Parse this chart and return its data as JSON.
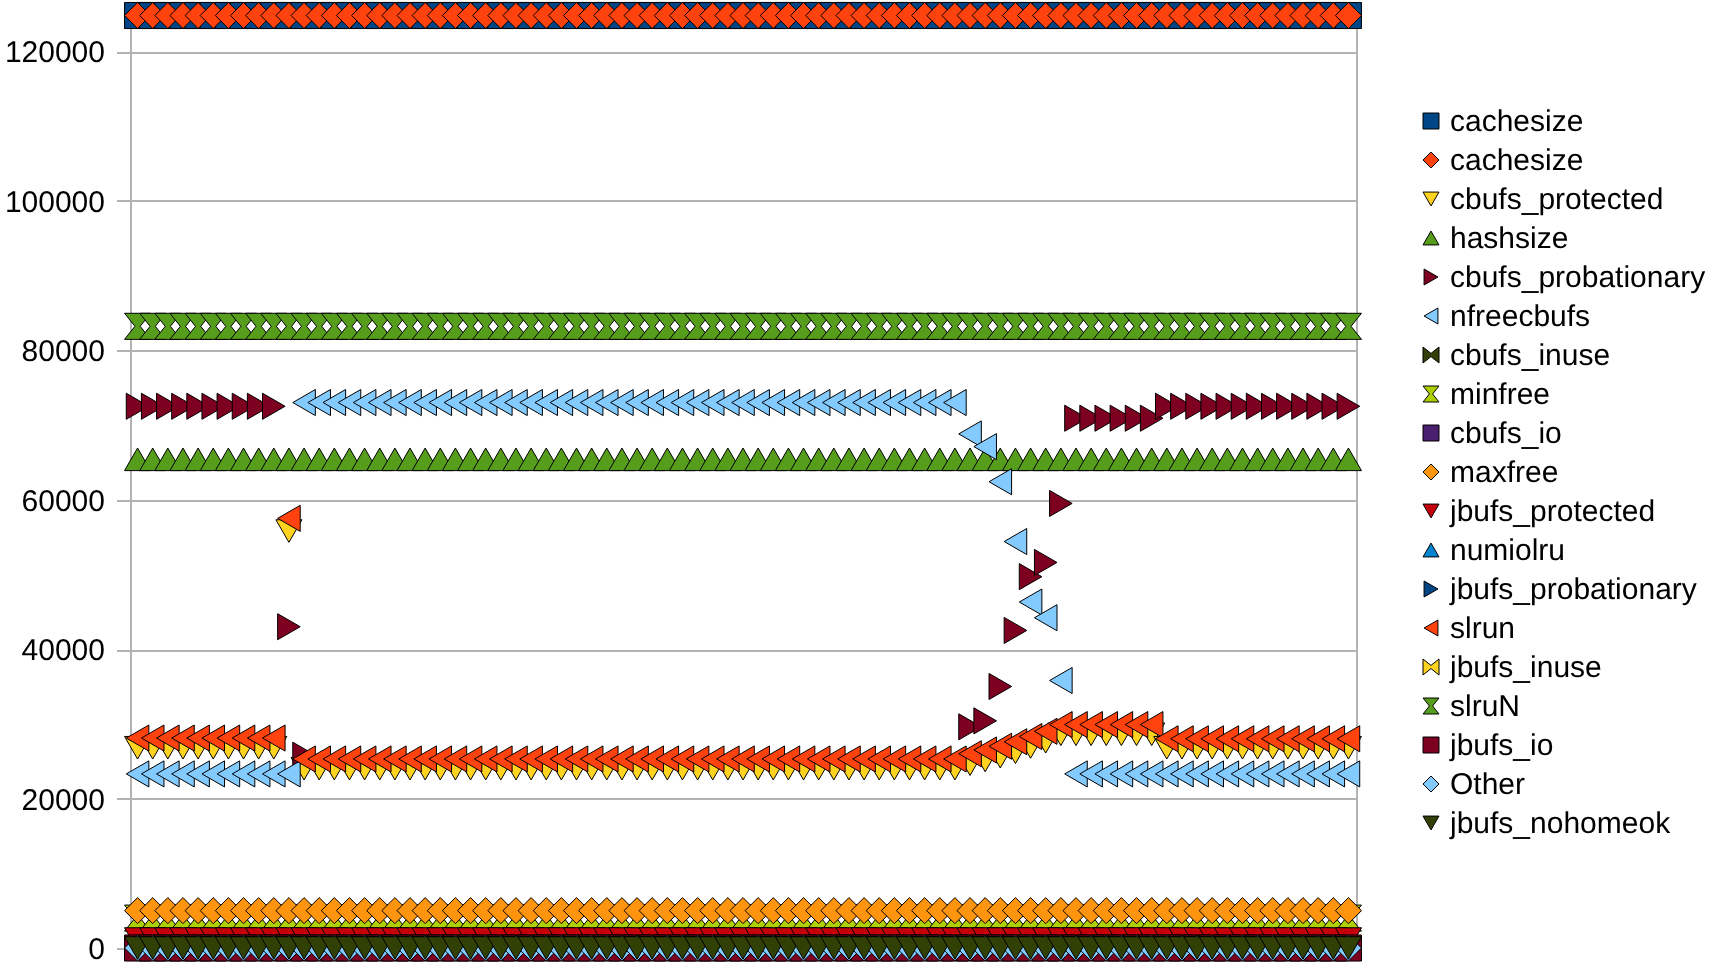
{
  "chart_data": {
    "type": "scatter",
    "tick_labels": "y",
    "grid": "y",
    "legend": "right",
    "categories": [
      null,
      null,
      null,
      null,
      null,
      null,
      null,
      null,
      null,
      null,
      null,
      null,
      null,
      null,
      null,
      null,
      null,
      null,
      null,
      null,
      null,
      null,
      null,
      null,
      null,
      null,
      null,
      null,
      null,
      null,
      null,
      null,
      null,
      null,
      null,
      null,
      null,
      null,
      null,
      null,
      null,
      null,
      null,
      null,
      null,
      null,
      null,
      null,
      null,
      null,
      null,
      null,
      null,
      null,
      null,
      null,
      null,
      null,
      null,
      null,
      null,
      null,
      null,
      null,
      null,
      null,
      null,
      null,
      null,
      null,
      null,
      null,
      null,
      null,
      null,
      null,
      null,
      null,
      null,
      null,
      null
    ],
    "ylim": [
      0,
      125000
    ],
    "yticks": [
      0,
      20000,
      40000,
      60000,
      80000,
      100000,
      120000
    ],
    "series": [
      {
        "name": "cachesize",
        "color": "#004586",
        "marker": "square",
        "values": [
          124800,
          124800,
          124800,
          124800,
          124800,
          124800,
          124800,
          124800,
          124800,
          124800,
          124800,
          124800,
          124800,
          124800,
          124800,
          124800,
          124800,
          124800,
          124800,
          124800,
          124800,
          124800,
          124800,
          124800,
          124800,
          124800,
          124800,
          124800,
          124800,
          124800,
          124800,
          124800,
          124800,
          124800,
          124800,
          124800,
          124800,
          124800,
          124800,
          124800,
          124800,
          124800,
          124800,
          124800,
          124800,
          124800,
          124800,
          124800,
          124800,
          124800,
          124800,
          124800,
          124800,
          124800,
          124800,
          124800,
          124800,
          124800,
          124800,
          124800,
          124800,
          124800,
          124800,
          124800,
          124800,
          124800,
          124800,
          124800,
          124800,
          124800,
          124800,
          124800,
          124800,
          124800,
          124800,
          124800,
          124800,
          124800,
          124800,
          124800,
          124800
        ]
      },
      {
        "name": "cachesize",
        "color": "#ff420e",
        "marker": "diamond",
        "values": [
          124800,
          124800,
          124800,
          124800,
          124800,
          124800,
          124800,
          124800,
          124800,
          124800,
          124800,
          124800,
          124800,
          124800,
          124800,
          124800,
          124800,
          124800,
          124800,
          124800,
          124800,
          124800,
          124800,
          124800,
          124800,
          124800,
          124800,
          124800,
          124800,
          124800,
          124800,
          124800,
          124800,
          124800,
          124800,
          124800,
          124800,
          124800,
          124800,
          124800,
          124800,
          124800,
          124800,
          124800,
          124800,
          124800,
          124800,
          124800,
          124800,
          124800,
          124800,
          124800,
          124800,
          124800,
          124800,
          124800,
          124800,
          124800,
          124800,
          124800,
          124800,
          124800,
          124800,
          124800,
          124800,
          124800,
          124800,
          124800,
          124800,
          124800,
          124800,
          124800,
          124800,
          124800,
          124800,
          124800,
          124800,
          124800,
          124800,
          124800,
          124800
        ]
      },
      {
        "name": "cbufs_protected",
        "color": "#ffd320",
        "marker": "triangle-down",
        "values": [
          26800,
          26800,
          26800,
          26800,
          26800,
          26800,
          26800,
          26800,
          26800,
          26800,
          55800,
          24000,
          24000,
          24000,
          24000,
          24000,
          24000,
          24000,
          24000,
          24000,
          24000,
          24000,
          24000,
          24000,
          24000,
          24000,
          24000,
          24000,
          24000,
          24000,
          24000,
          24000,
          24000,
          24000,
          24000,
          24000,
          24000,
          24000,
          24000,
          24000,
          24000,
          24000,
          24000,
          24000,
          24000,
          24000,
          24000,
          24000,
          24000,
          24000,
          24000,
          24000,
          24000,
          24000,
          24000,
          24600,
          25100,
          25600,
          26200,
          26900,
          27600,
          28600,
          28600,
          28600,
          28600,
          28600,
          28600,
          28600,
          26800,
          26800,
          26800,
          26800,
          26800,
          26800,
          26800,
          26800,
          26800,
          26800,
          26800,
          26800,
          26800
        ]
      },
      {
        "name": "hashsize",
        "color": "#579d1c",
        "marker": "triangle-up",
        "values": [
          65400,
          65400,
          65400,
          65400,
          65400,
          65400,
          65400,
          65400,
          65400,
          65400,
          65400,
          65400,
          65400,
          65400,
          65400,
          65400,
          65400,
          65400,
          65400,
          65400,
          65400,
          65400,
          65400,
          65400,
          65400,
          65400,
          65400,
          65400,
          65400,
          65400,
          65400,
          65400,
          65400,
          65400,
          65400,
          65400,
          65400,
          65400,
          65400,
          65400,
          65400,
          65400,
          65400,
          65400,
          65400,
          65400,
          65400,
          65400,
          65400,
          65400,
          65400,
          65400,
          65400,
          65400,
          65400,
          65400,
          65400,
          65400,
          65400,
          65400,
          65400,
          65400,
          65400,
          65400,
          65400,
          65400,
          65400,
          65400,
          65400,
          65400,
          65400,
          65400,
          65400,
          65400,
          65400,
          65400,
          65400,
          65400,
          65400,
          65400,
          65400
        ]
      },
      {
        "name": "cbufs_probationary",
        "color": "#7e0021",
        "marker": "triangle-right",
        "values": [
          72500,
          72500,
          72500,
          72500,
          72500,
          72500,
          72500,
          72500,
          72500,
          72500,
          43000,
          25800,
          null,
          null,
          null,
          null,
          null,
          null,
          null,
          null,
          null,
          null,
          null,
          null,
          null,
          null,
          null,
          null,
          null,
          null,
          null,
          null,
          null,
          null,
          null,
          null,
          null,
          null,
          null,
          null,
          null,
          null,
          null,
          null,
          null,
          null,
          null,
          null,
          null,
          null,
          null,
          null,
          null,
          null,
          null,
          29600,
          30400,
          35000,
          42500,
          49700,
          51600,
          59500,
          70900,
          70900,
          70900,
          70900,
          70900,
          70900,
          72500,
          72500,
          72500,
          72500,
          72500,
          72500,
          72500,
          72500,
          72500,
          72500,
          72500,
          72500,
          72500
        ]
      },
      {
        "name": "nfreecbufs",
        "color": "#83caff",
        "marker": "triangle-left",
        "values": [
          23300,
          23300,
          23300,
          23300,
          23300,
          23300,
          23300,
          23300,
          23300,
          23300,
          23300,
          73000,
          73000,
          73000,
          73000,
          73000,
          73000,
          73000,
          73000,
          73000,
          73000,
          73000,
          73000,
          73000,
          73000,
          73000,
          73000,
          73000,
          73000,
          73000,
          73000,
          73000,
          73000,
          73000,
          73000,
          73000,
          73000,
          73000,
          73000,
          73000,
          73000,
          73000,
          73000,
          73000,
          73000,
          73000,
          73000,
          73000,
          73000,
          73000,
          73000,
          73000,
          73000,
          73000,
          73000,
          68800,
          67100,
          62400,
          54400,
          46300,
          44200,
          35800,
          23300,
          23300,
          23300,
          23300,
          23300,
          23300,
          23300,
          23300,
          23300,
          23300,
          23300,
          23300,
          23300,
          23300,
          23300,
          23300,
          23300,
          23300,
          23300
        ]
      },
      {
        "name": "cbufs_inuse",
        "color": "#314004",
        "values": [
          null,
          null,
          null,
          null,
          null,
          null,
          null,
          null,
          null,
          null,
          null,
          null,
          null,
          null,
          null,
          null,
          null,
          null,
          null,
          null,
          null,
          null,
          null,
          null,
          null,
          null,
          null,
          null,
          null,
          null,
          null,
          null,
          null,
          null,
          null,
          null,
          null,
          null,
          null,
          null,
          null,
          null,
          null,
          null,
          null,
          null,
          null,
          null,
          null,
          null,
          null,
          null,
          null,
          null,
          null,
          null,
          null,
          null,
          null,
          null,
          null,
          null,
          null,
          null,
          null,
          null,
          null,
          null,
          null,
          null,
          null,
          null,
          null,
          null,
          null,
          null,
          null,
          null,
          null,
          null,
          null
        ]
      },
      {
        "name": "minfree",
        "color": "#aecf00",
        "values": [
          4000,
          4000,
          4000,
          4000,
          4000,
          4000,
          4000,
          4000,
          4000,
          4000,
          4000,
          4000,
          4000,
          4000,
          4000,
          4000,
          4000,
          4000,
          4000,
          4000,
          4000,
          4000,
          4000,
          4000,
          4000,
          4000,
          4000,
          4000,
          4000,
          4000,
          4000,
          4000,
          4000,
          4000,
          4000,
          4000,
          4000,
          4000,
          4000,
          4000,
          4000,
          4000,
          4000,
          4000,
          4000,
          4000,
          4000,
          4000,
          4000,
          4000,
          4000,
          4000,
          4000,
          4000,
          4000,
          4000,
          4000,
          4000,
          4000,
          4000,
          4000,
          4000,
          4000,
          4000,
          4000,
          4000,
          4000,
          4000,
          4000,
          4000,
          4000,
          4000,
          4000,
          4000,
          4000,
          4000,
          4000,
          4000,
          4000,
          4000,
          4000
        ]
      },
      {
        "name": "cbufs_io",
        "color": "#4b1f6f",
        "marker": "square",
        "values": [
          null,
          null,
          null,
          null,
          null,
          null,
          null,
          null,
          null,
          null,
          null,
          null,
          null,
          null,
          null,
          null,
          null,
          null,
          null,
          null,
          null,
          null,
          null,
          null,
          null,
          null,
          null,
          null,
          null,
          null,
          null,
          null,
          null,
          null,
          null,
          null,
          null,
          null,
          null,
          null,
          null,
          null,
          null,
          null,
          null,
          null,
          null,
          null,
          null,
          null,
          null,
          null,
          null,
          null,
          null,
          null,
          null,
          null,
          null,
          null,
          null,
          null,
          null,
          null,
          null,
          null,
          null,
          null,
          null,
          null,
          null,
          null,
          null,
          null,
          null,
          null,
          null,
          null,
          null,
          null,
          null
        ]
      },
      {
        "name": "maxfree",
        "color": "#ff950e",
        "marker": "diamond",
        "values": [
          5000,
          5000,
          5000,
          5000,
          5000,
          5000,
          5000,
          5000,
          5000,
          5000,
          5000,
          5000,
          5000,
          5000,
          5000,
          5000,
          5000,
          5000,
          5000,
          5000,
          5000,
          5000,
          5000,
          5000,
          5000,
          5000,
          5000,
          5000,
          5000,
          5000,
          5000,
          5000,
          5000,
          5000,
          5000,
          5000,
          5000,
          5000,
          5000,
          5000,
          5000,
          5000,
          5000,
          5000,
          5000,
          5000,
          5000,
          5000,
          5000,
          5000,
          5000,
          5000,
          5000,
          5000,
          5000,
          5000,
          5000,
          5000,
          5000,
          5000,
          5000,
          5000,
          5000,
          5000,
          5000,
          5000,
          5000,
          5000,
          5000,
          5000,
          5000,
          5000,
          5000,
          5000,
          5000,
          5000,
          5000,
          5000,
          5000,
          5000,
          5000
        ]
      },
      {
        "name": "jbufs_protected",
        "color": "#c5000b",
        "marker": "triangle-down",
        "values": [
          1200,
          1200,
          1200,
          1200,
          1200,
          1200,
          1200,
          1200,
          1200,
          1200,
          1200,
          1200,
          1200,
          1200,
          1200,
          1200,
          1200,
          1200,
          1200,
          1200,
          1200,
          1200,
          1200,
          1200,
          1200,
          1200,
          1200,
          1200,
          1200,
          1200,
          1200,
          1200,
          1200,
          1200,
          1200,
          1200,
          1200,
          1200,
          1200,
          1200,
          1200,
          1200,
          1200,
          1200,
          1200,
          1200,
          1200,
          1200,
          1200,
          1200,
          1200,
          1200,
          1200,
          1200,
          1200,
          1200,
          1200,
          1200,
          1200,
          1200,
          1200,
          1200,
          1200,
          1200,
          1200,
          1200,
          1200,
          1200,
          1200,
          1200,
          1200,
          1200,
          1200,
          1200,
          1200,
          1200,
          1200,
          1200,
          1200,
          1200,
          1200
        ]
      },
      {
        "name": "numiolru",
        "color": "#0084d1",
        "marker": "triangle-up",
        "values": [
          null,
          null,
          null,
          null,
          null,
          null,
          null,
          null,
          null,
          null,
          null,
          null,
          null,
          null,
          null,
          null,
          null,
          null,
          null,
          null,
          null,
          null,
          null,
          null,
          null,
          null,
          null,
          null,
          null,
          null,
          null,
          null,
          null,
          null,
          null,
          null,
          null,
          null,
          null,
          null,
          null,
          null,
          null,
          null,
          null,
          null,
          null,
          null,
          null,
          null,
          null,
          null,
          null,
          null,
          null,
          null,
          null,
          null,
          null,
          null,
          null,
          null,
          null,
          null,
          null,
          null,
          null,
          null,
          null,
          null,
          null,
          null,
          null,
          null,
          null,
          null,
          null,
          null,
          null,
          null,
          null
        ]
      },
      {
        "name": "jbufs_probationary",
        "color": "#004586",
        "marker": "triangle-right",
        "values": [
          null,
          null,
          null,
          null,
          null,
          null,
          null,
          null,
          null,
          null,
          null,
          null,
          null,
          null,
          null,
          null,
          null,
          null,
          null,
          null,
          null,
          null,
          null,
          null,
          null,
          null,
          null,
          null,
          null,
          null,
          null,
          null,
          null,
          null,
          null,
          null,
          null,
          null,
          null,
          null,
          null,
          null,
          null,
          null,
          null,
          null,
          null,
          null,
          null,
          null,
          null,
          null,
          null,
          null,
          null,
          null,
          null,
          null,
          null,
          null,
          null,
          null,
          null,
          null,
          null,
          null,
          null,
          null,
          null,
          null,
          null,
          null,
          null,
          null,
          null,
          null,
          null,
          null,
          null,
          null,
          null
        ]
      },
      {
        "name": "slrun",
        "color": "#ff420e",
        "marker": "triangle-left",
        "values": [
          28100,
          28100,
          28100,
          28100,
          28100,
          28100,
          28100,
          28100,
          28100,
          28100,
          57500,
          25300,
          25300,
          25300,
          25300,
          25300,
          25300,
          25300,
          25300,
          25300,
          25300,
          25300,
          25300,
          25300,
          25300,
          25300,
          25300,
          25300,
          25300,
          25300,
          25300,
          25300,
          25300,
          25300,
          25300,
          25300,
          25300,
          25300,
          25300,
          25300,
          25300,
          25300,
          25300,
          25300,
          25300,
          25300,
          25300,
          25300,
          25300,
          25300,
          25300,
          25300,
          25300,
          25300,
          25300,
          26000,
          26500,
          27000,
          27600,
          28300,
          29000,
          29900,
          29900,
          29900,
          29900,
          29900,
          29900,
          29900,
          28000,
          28000,
          28000,
          28000,
          28000,
          28000,
          28000,
          28000,
          28000,
          28000,
          28000,
          28000,
          28000
        ]
      },
      {
        "name": "jbufs_inuse",
        "color": "#ffd320",
        "values": [
          null,
          null,
          null,
          null,
          null,
          null,
          null,
          null,
          null,
          null,
          null,
          null,
          null,
          null,
          null,
          null,
          null,
          null,
          null,
          null,
          null,
          null,
          null,
          null,
          null,
          null,
          null,
          null,
          null,
          null,
          null,
          null,
          null,
          null,
          null,
          null,
          null,
          null,
          null,
          null,
          null,
          null,
          null,
          null,
          null,
          null,
          null,
          null,
          null,
          null,
          null,
          null,
          null,
          null,
          null,
          null,
          null,
          null,
          null,
          null,
          null,
          null,
          null,
          null,
          null,
          null,
          null,
          null,
          null,
          null,
          null,
          null,
          null,
          null,
          null,
          null,
          null,
          null,
          null,
          null,
          null
        ]
      },
      {
        "name": "slruN",
        "color": "#579d1c",
        "values": [
          83200,
          83200,
          83200,
          83200,
          83200,
          83200,
          83200,
          83200,
          83200,
          83200,
          83200,
          83200,
          83200,
          83200,
          83200,
          83200,
          83200,
          83200,
          83200,
          83200,
          83200,
          83200,
          83200,
          83200,
          83200,
          83200,
          83200,
          83200,
          83200,
          83200,
          83200,
          83200,
          83200,
          83200,
          83200,
          83200,
          83200,
          83200,
          83200,
          83200,
          83200,
          83200,
          83200,
          83200,
          83200,
          83200,
          83200,
          83200,
          83200,
          83200,
          83200,
          83200,
          83200,
          83200,
          83200,
          83200,
          83200,
          83200,
          83200,
          83200,
          83200,
          83200,
          83200,
          83200,
          83200,
          83200,
          83200,
          83200,
          83200,
          83200,
          83200,
          83200,
          83200,
          83200,
          83200,
          83200,
          83200,
          83200,
          83200,
          83200,
          83200
        ]
      },
      {
        "name": "jbufs_io",
        "color": "#7e0021",
        "marker": "square",
        "values": [
          0,
          0,
          0,
          0,
          0,
          0,
          0,
          0,
          0,
          0,
          0,
          0,
          0,
          0,
          0,
          0,
          0,
          0,
          0,
          0,
          0,
          0,
          0,
          0,
          0,
          0,
          0,
          0,
          0,
          0,
          0,
          0,
          0,
          0,
          0,
          0,
          0,
          0,
          0,
          0,
          0,
          0,
          0,
          0,
          0,
          0,
          0,
          0,
          0,
          0,
          0,
          0,
          0,
          0,
          0,
          0,
          0,
          0,
          0,
          0,
          0,
          0,
          0,
          0,
          0,
          0,
          0,
          0,
          0,
          0,
          0,
          0,
          0,
          0,
          0,
          0,
          0,
          0,
          0,
          0,
          0
        ]
      },
      {
        "name": "Other",
        "color": "#83caff",
        "marker": "diamond",
        "values": [
          0,
          0,
          0,
          0,
          0,
          0,
          0,
          0,
          0,
          0,
          0,
          0,
          0,
          0,
          0,
          0,
          0,
          0,
          0,
          0,
          0,
          0,
          0,
          0,
          0,
          0,
          0,
          0,
          0,
          0,
          0,
          0,
          0,
          0,
          0,
          0,
          0,
          0,
          0,
          0,
          0,
          0,
          0,
          0,
          0,
          0,
          0,
          0,
          0,
          0,
          0,
          0,
          0,
          0,
          0,
          0,
          0,
          0,
          0,
          0,
          0,
          0,
          0,
          0,
          0,
          0,
          0,
          0,
          0,
          0,
          0,
          0,
          0,
          0,
          0,
          0,
          0,
          0,
          0,
          0,
          0
        ]
      },
      {
        "name": "jbufs_nohomeok",
        "color": "#314004",
        "marker": "triangle-down",
        "values": [
          0,
          0,
          0,
          0,
          0,
          0,
          0,
          0,
          0,
          0,
          0,
          0,
          0,
          0,
          0,
          0,
          0,
          0,
          0,
          0,
          0,
          0,
          0,
          0,
          0,
          0,
          0,
          0,
          0,
          0,
          0,
          0,
          0,
          0,
          0,
          0,
          0,
          0,
          0,
          0,
          0,
          0,
          0,
          0,
          0,
          0,
          0,
          0,
          0,
          0,
          0,
          0,
          0,
          0,
          0,
          0,
          0,
          0,
          0,
          0,
          0,
          0,
          0,
          0,
          0,
          0,
          0,
          0,
          0,
          0,
          0,
          0,
          0,
          0,
          0,
          0,
          0,
          0,
          0,
          0,
          0
        ]
      }
    ]
  }
}
